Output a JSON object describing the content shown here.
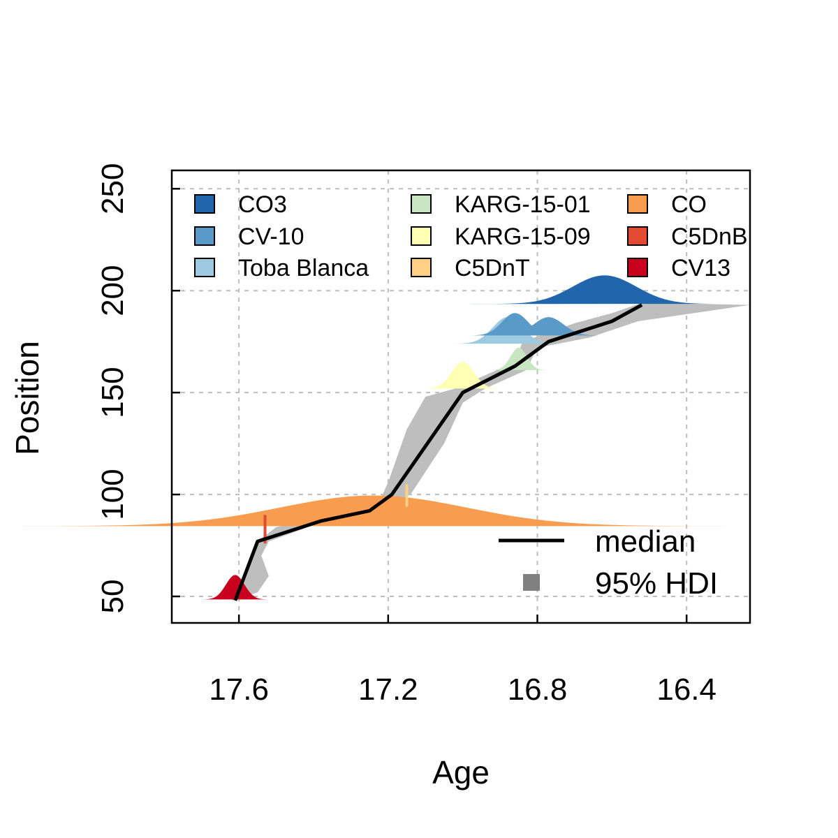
{
  "chart_data": {
    "type": "area",
    "xlabel": "Age",
    "ylabel": "Position",
    "xlim": [
      17.78,
      16.23
    ],
    "ylim": [
      37,
      259
    ],
    "x_reversed": true,
    "x_ticks": [
      17.6,
      17.2,
      16.8,
      16.4
    ],
    "x_tick_labels": [
      "17.6",
      "17.2",
      "16.8",
      "16.4"
    ],
    "y_ticks": [
      50,
      100,
      150,
      200,
      250
    ],
    "y_tick_labels": [
      "50",
      "100",
      "150",
      "200",
      "250"
    ],
    "grid": true,
    "median": {
      "name": "median",
      "color": "#000000",
      "points": [
        [
          17.61,
          48
        ],
        [
          17.55,
          77
        ],
        [
          17.38,
          87
        ],
        [
          17.25,
          92
        ],
        [
          17.19,
          100
        ],
        [
          17.0,
          150
        ],
        [
          16.86,
          163
        ],
        [
          16.77,
          175
        ],
        [
          16.6,
          185
        ],
        [
          16.52,
          193
        ]
      ]
    },
    "hdi": {
      "name": "95% HDI",
      "color": "#bebebe",
      "upper": [
        [
          17.62,
          48
        ],
        [
          17.58,
          62
        ],
        [
          17.57,
          70
        ],
        [
          17.55,
          77
        ],
        [
          17.5,
          84
        ],
        [
          17.36,
          89
        ],
        [
          17.28,
          93
        ],
        [
          17.22,
          98
        ],
        [
          17.2,
          106
        ],
        [
          17.15,
          132
        ],
        [
          17.1,
          148
        ],
        [
          17.02,
          152
        ],
        [
          16.86,
          165
        ],
        [
          16.84,
          175
        ],
        [
          16.7,
          184
        ],
        [
          16.6,
          189
        ],
        [
          16.52,
          194
        ]
      ],
      "lower": [
        [
          17.55,
          52
        ],
        [
          17.52,
          60
        ],
        [
          17.54,
          70
        ],
        [
          17.52,
          77
        ],
        [
          17.4,
          85
        ],
        [
          17.26,
          88
        ],
        [
          17.2,
          95
        ],
        [
          17.14,
          100
        ],
        [
          17.05,
          125
        ],
        [
          17.0,
          145
        ],
        [
          16.94,
          152
        ],
        [
          16.83,
          161
        ],
        [
          16.8,
          172
        ],
        [
          16.66,
          177
        ],
        [
          16.53,
          185
        ],
        [
          16.23,
          193
        ]
      ]
    },
    "legend2": {
      "position": "bottom-right",
      "entries": [
        {
          "label": "median",
          "kind": "line",
          "color": "#000000"
        },
        {
          "label": "95% HDI",
          "kind": "square",
          "color": "#808080"
        }
      ]
    },
    "tephra": [
      {
        "name": "CO3",
        "color": "#2166ac",
        "base": 193.5,
        "mean": 16.62,
        "sd": 0.085,
        "height": 14
      },
      {
        "name": "CV-10",
        "color": "#5a9ac8",
        "base": 178,
        "mode1": {
          "mean": 16.86,
          "sd": 0.035,
          "height": 11
        },
        "mode2": {
          "mean": 16.77,
          "sd": 0.04,
          "height": 9
        }
      },
      {
        "name": "Toba Blanca",
        "color": "#9ecae1",
        "base": 174,
        "mean": 16.88,
        "sd": 0.04,
        "height": 13
      },
      {
        "name": "KARG-15-01",
        "color": "#c7e6c1",
        "base": 161,
        "mean": 16.85,
        "sd": 0.022,
        "height": 11
      },
      {
        "name": "KARG-15-09",
        "color": "#ffffb3",
        "base": 152,
        "mean": 17.0,
        "sd": 0.03,
        "height": 13
      },
      {
        "name": "C5DnT",
        "color": "#fdd085",
        "base": 94,
        "mean": 17.15,
        "sd": 0.002,
        "height": 11
      },
      {
        "name": "CO",
        "color": "#f89d4f",
        "base": 84.5,
        "mean": 17.24,
        "sd": 0.25,
        "height": 15
      },
      {
        "name": "C5DnB",
        "color": "#e34a33",
        "base": 76,
        "mean": 17.53,
        "sd": 0.002,
        "height": 14
      },
      {
        "name": "CV13",
        "color": "#c8001e",
        "base": 48.5,
        "mean": 17.61,
        "sd": 0.025,
        "height": 12
      }
    ]
  }
}
